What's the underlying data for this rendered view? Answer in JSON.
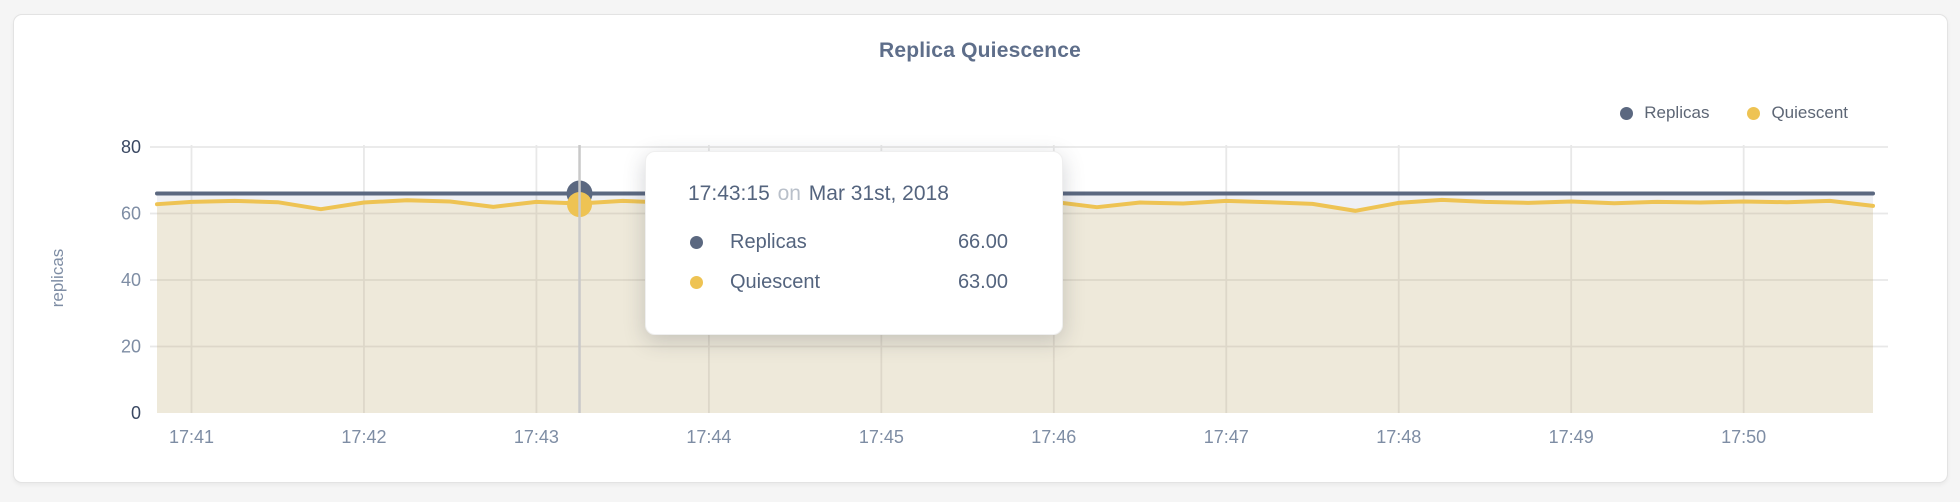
{
  "colors": {
    "page_bg": "#f5f5f5",
    "card_bg": "#ffffff",
    "grid": "#e8e8e8",
    "crosshair": "#c9c9c9",
    "axis_text": "#7e8da4",
    "axis_text_emphasis": "#3a4862",
    "title_text": "#5e6e8a",
    "tooltip_text": "#54647e",
    "tooltip_muted_text": "#b9c0ca"
  },
  "tooltip": {
    "time": "17:43:15",
    "connector": "on",
    "date": "Mar 31st, 2018",
    "rows": [
      {
        "label": "Replicas",
        "value": "66.00",
        "color": "#5b6880"
      },
      {
        "label": "Quiescent",
        "value": "63.00",
        "color": "#eec353"
      }
    ]
  },
  "chart_data": {
    "type": "line",
    "title": "Replica Quiescence",
    "xlabel": "",
    "ylabel": "replicas",
    "ylim": [
      0,
      80
    ],
    "y_ticks": [
      0,
      20,
      40,
      60,
      80
    ],
    "y_ticks_emphasized": [
      0,
      80
    ],
    "x_unit": "minutes after 17:40:00",
    "xlim": [
      0.8,
      10.75
    ],
    "x_ticks": [
      {
        "t": 1,
        "label": "17:41"
      },
      {
        "t": 2,
        "label": "17:42"
      },
      {
        "t": 3,
        "label": "17:43"
      },
      {
        "t": 4,
        "label": "17:44"
      },
      {
        "t": 5,
        "label": "17:45"
      },
      {
        "t": 6,
        "label": "17:46"
      },
      {
        "t": 7,
        "label": "17:47"
      },
      {
        "t": 8,
        "label": "17:48"
      },
      {
        "t": 9,
        "label": "17:49"
      },
      {
        "t": 10,
        "label": "17:50"
      }
    ],
    "grid": true,
    "legend_position": "top-right",
    "series": [
      {
        "name": "Replicas",
        "color": "#5b6880",
        "fill": "rgba(99,112,143,0.10)",
        "points": [
          [
            0.8,
            66
          ],
          [
            10.75,
            66
          ]
        ]
      },
      {
        "name": "Quiescent",
        "color": "#eec353",
        "fill": "rgba(236,196,87,0.16)",
        "points": [
          [
            0.8,
            62.8
          ],
          [
            1,
            63.5
          ],
          [
            1.25,
            63.8
          ],
          [
            1.5,
            63.4
          ],
          [
            1.75,
            61.3
          ],
          [
            2,
            63.3
          ],
          [
            2.25,
            64
          ],
          [
            2.5,
            63.6
          ],
          [
            2.75,
            62
          ],
          [
            3,
            63.5
          ],
          [
            3.25,
            63
          ],
          [
            3.5,
            63.8
          ],
          [
            3.75,
            63.3
          ],
          [
            4,
            63.5
          ],
          [
            4.25,
            63
          ],
          [
            4.5,
            62.6
          ],
          [
            4.75,
            63.3
          ],
          [
            5,
            63.6
          ],
          [
            5.25,
            63.2
          ],
          [
            5.5,
            63.4
          ],
          [
            5.75,
            63.1
          ],
          [
            6,
            63.5
          ],
          [
            6.25,
            61.9
          ],
          [
            6.5,
            63.3
          ],
          [
            6.75,
            63
          ],
          [
            7,
            63.8
          ],
          [
            7.25,
            63.4
          ],
          [
            7.5,
            62.9
          ],
          [
            7.75,
            60.8
          ],
          [
            8,
            63.2
          ],
          [
            8.25,
            64.1
          ],
          [
            8.5,
            63.5
          ],
          [
            8.75,
            63.2
          ],
          [
            9,
            63.6
          ],
          [
            9.25,
            63.1
          ],
          [
            9.5,
            63.5
          ],
          [
            9.75,
            63.3
          ],
          [
            10,
            63.6
          ],
          [
            10.25,
            63.4
          ],
          [
            10.5,
            63.8
          ],
          [
            10.75,
            62.3
          ]
        ]
      }
    ],
    "hover_point": {
      "t": 3.25,
      "time": "17:43:15",
      "date": "Mar 31st, 2018",
      "values": {
        "Replicas": 66,
        "Quiescent": 63
      }
    }
  }
}
